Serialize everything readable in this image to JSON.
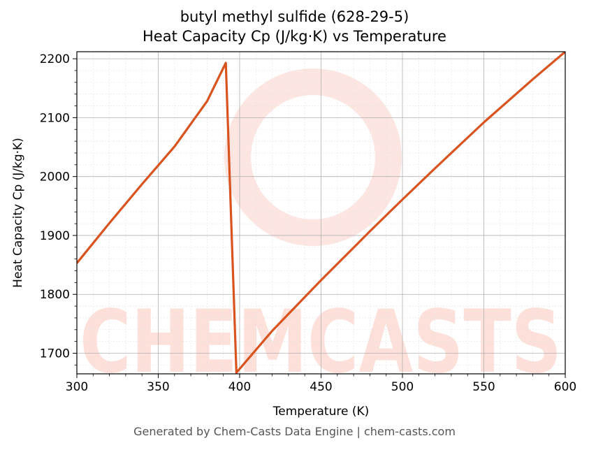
{
  "title_line1": "butyl methyl sulfide (628-29-5)",
  "title_line2": "Heat Capacity Cp (J/kg·K) vs Temperature",
  "footer": "Generated by Chem-Casts Data Engine | chem-casts.com",
  "watermark": "CHEMCASTS",
  "colors": {
    "line": "#d9531e",
    "watermark": "#fde0da",
    "grid_major": "#b0b0b0",
    "grid_minor": "#e4e4e4"
  },
  "chart_data": {
    "type": "line",
    "xlabel": "Temperature (K)",
    "ylabel": "Heat Capacity Cp (J/kg·K)",
    "xlim": [
      300,
      600
    ],
    "ylim": [
      1665,
      2212
    ],
    "xticks": [
      300,
      350,
      400,
      450,
      500,
      550,
      600
    ],
    "yticks": [
      1700,
      1800,
      1900,
      2000,
      2100,
      2200
    ],
    "grid": true,
    "series": [
      {
        "x": [
          300,
          320,
          340,
          360,
          380,
          391.5,
          398,
          420,
          450,
          480,
          500,
          520,
          550,
          580,
          600
        ],
        "y": [
          1853,
          1921,
          1987,
          2051,
          2128,
          2193,
          1667,
          1738,
          1824,
          1907,
          1961,
          2014,
          2092,
          2165,
          2212
        ]
      }
    ]
  }
}
